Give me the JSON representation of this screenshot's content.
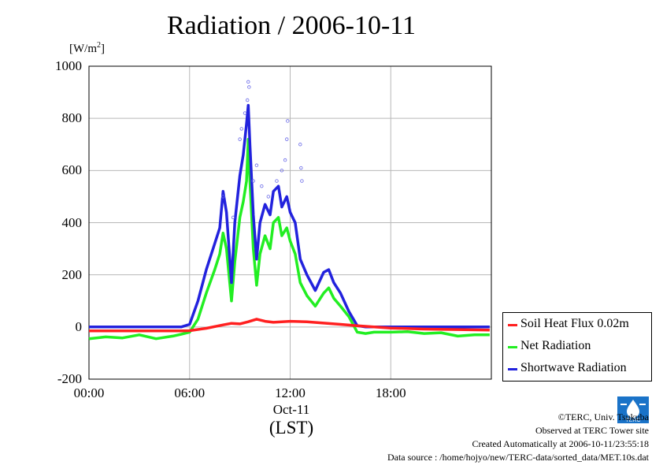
{
  "chart_data": {
    "type": "line",
    "title": "Radiation / 2006-10-11",
    "ylabel_unit": "[W/m",
    "ylabel_unit_sup": "2",
    "ylabel_unit_close": "]",
    "ylim": [
      -200,
      1000
    ],
    "yticks": [
      "1000",
      "800",
      "600",
      "400",
      "200",
      "0",
      "-200"
    ],
    "ytick_values": [
      1000,
      800,
      600,
      400,
      200,
      0,
      -200
    ],
    "xlim": [
      0,
      24
    ],
    "xticks": [
      "00:00",
      "06:00",
      "12:00",
      "18:00"
    ],
    "xtick_values": [
      0,
      6,
      12,
      18
    ],
    "xdate_label": "Oct-11",
    "xunit_label": "(LST)",
    "grid": true,
    "legend_position": "bottom-right-outside",
    "series": [
      {
        "name": "Soil Heat Flux 0.02m",
        "color": "#ff2020",
        "x": [
          0,
          5.5,
          6,
          7,
          8,
          8.5,
          9,
          9.5,
          10,
          10.5,
          11,
          12,
          13,
          14,
          15,
          16,
          17,
          18,
          20,
          22,
          23.9
        ],
        "values": [
          -15,
          -15,
          -14,
          -5,
          8,
          14,
          12,
          20,
          30,
          22,
          18,
          22,
          20,
          15,
          10,
          5,
          0,
          -4,
          -8,
          -10,
          -12
        ]
      },
      {
        "name": "Net Radiation",
        "color": "#22ee22",
        "x": [
          0,
          1,
          2,
          3,
          4,
          5,
          5.5,
          6,
          6.5,
          7,
          7.5,
          7.8,
          8,
          8.2,
          8.5,
          8.7,
          9,
          9.2,
          9.4,
          9.5,
          9.6,
          9.8,
          10,
          10.2,
          10.5,
          10.8,
          11,
          11.3,
          11.5,
          11.8,
          12,
          12.3,
          12.6,
          13,
          13.5,
          14,
          14.3,
          14.6,
          15,
          15.5,
          16,
          16.5,
          17,
          18,
          19,
          20,
          21,
          22,
          23,
          23.9
        ],
        "values": [
          -45,
          -38,
          -42,
          -30,
          -45,
          -35,
          -28,
          -20,
          30,
          130,
          220,
          280,
          360,
          300,
          100,
          250,
          420,
          480,
          560,
          720,
          560,
          300,
          160,
          280,
          350,
          300,
          400,
          420,
          350,
          380,
          330,
          280,
          170,
          120,
          80,
          130,
          150,
          110,
          80,
          40,
          -20,
          -25,
          -20,
          -20,
          -18,
          -25,
          -22,
          -35,
          -30,
          -30
        ]
      },
      {
        "name": "Shortwave Radiation",
        "color": "#2222dd",
        "x": [
          0,
          1,
          2,
          3,
          4,
          5,
          5.5,
          6,
          6.5,
          7,
          7.5,
          7.8,
          8,
          8.2,
          8.5,
          8.7,
          9,
          9.2,
          9.4,
          9.5,
          9.6,
          9.8,
          10,
          10.2,
          10.5,
          10.8,
          11,
          11.3,
          11.5,
          11.8,
          12,
          12.3,
          12.6,
          13,
          13.5,
          14,
          14.3,
          14.6,
          15,
          15.5,
          16,
          16.5,
          17,
          18,
          19,
          20,
          21,
          22,
          23,
          23.9
        ],
        "values": [
          0,
          0,
          0,
          0,
          0,
          0,
          0,
          10,
          100,
          220,
          320,
          380,
          520,
          440,
          170,
          400,
          580,
          660,
          780,
          850,
          700,
          430,
          260,
          400,
          470,
          430,
          520,
          540,
          460,
          500,
          440,
          400,
          260,
          200,
          140,
          210,
          220,
          170,
          130,
          60,
          5,
          0,
          0,
          0,
          0,
          0,
          0,
          0,
          0,
          0
        ]
      }
    ],
    "scatter_points": [
      {
        "x": 9.0,
        "y": 720
      },
      {
        "x": 9.1,
        "y": 760
      },
      {
        "x": 9.3,
        "y": 820
      },
      {
        "x": 9.5,
        "y": 940
      },
      {
        "x": 9.55,
        "y": 920
      },
      {
        "x": 9.45,
        "y": 870
      },
      {
        "x": 10.0,
        "y": 620
      },
      {
        "x": 10.3,
        "y": 540
      },
      {
        "x": 10.7,
        "y": 500
      },
      {
        "x": 11.2,
        "y": 560
      },
      {
        "x": 11.7,
        "y": 640
      },
      {
        "x": 11.8,
        "y": 720
      },
      {
        "x": 11.85,
        "y": 790
      },
      {
        "x": 12.6,
        "y": 700
      },
      {
        "x": 12.65,
        "y": 610
      },
      {
        "x": 12.7,
        "y": 560
      },
      {
        "x": 8.0,
        "y": 500
      },
      {
        "x": 8.6,
        "y": 420
      },
      {
        "x": 9.8,
        "y": 560
      },
      {
        "x": 11.5,
        "y": 600
      }
    ]
  },
  "credits": {
    "copyright": "©TERC, Univ. Tsukuba",
    "observed": "Observed at TERC Tower site",
    "created": "Created Automatically at 2006-10-11/23:55:18",
    "source": "Data source : /home/hojyo/new/TERC-data/sorted_data/MET.10s.dat",
    "logo_text": "TERC",
    "logo_color": "#1a73c8"
  }
}
